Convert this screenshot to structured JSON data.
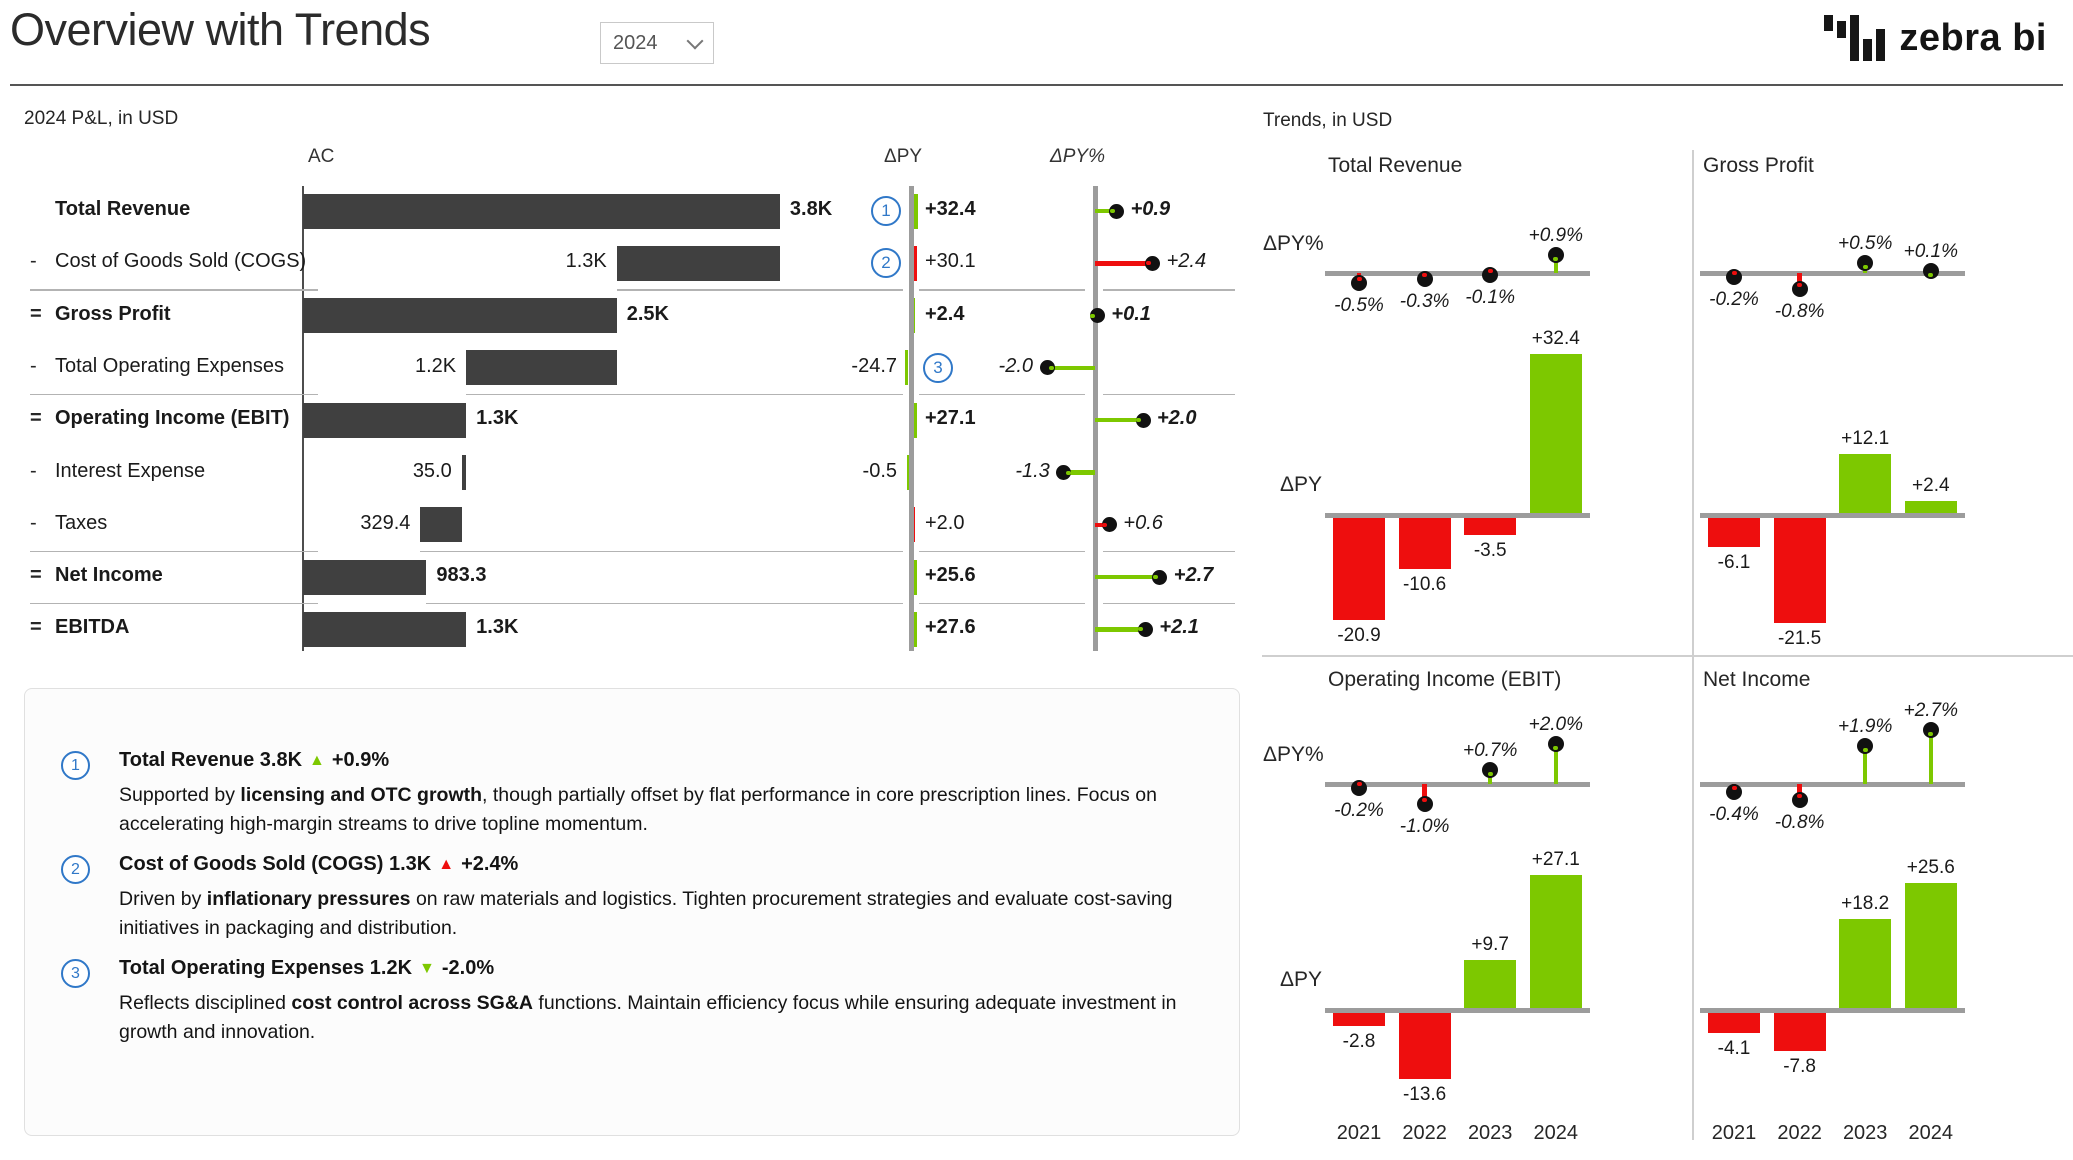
{
  "header": {
    "title": "Overview with Trends",
    "year": "2024",
    "logo_text": "zebra bi"
  },
  "colors": {
    "green": "#7DC800",
    "red": "#EE0E0E",
    "dark_bar": "#404040",
    "axis_gray": "#9C9C9C",
    "axis_dark": "#4d4d4d",
    "marker_blue": "#3078C8",
    "separator": "#b3b3b3",
    "panel_divider": "#cfcfcf",
    "dot_black": "#111111"
  },
  "pl": {
    "section_title": "2024 P&L, in USD",
    "columns": {
      "ac": "AC",
      "dpy": "ΔPY",
      "dpy_pct": "ΔPY%"
    },
    "rows": [
      {
        "prefix": "",
        "label": "Total Revenue",
        "bold": true,
        "ac": {
          "label": "3.8K",
          "from": 0,
          "value": 3800,
          "label_side": "right"
        },
        "dpy": {
          "value": 32.4,
          "label": "+32.4",
          "color": "green"
        },
        "pct": {
          "value": 0.9,
          "label": "+0.9",
          "color": "green"
        },
        "marker": {
          "label": "1",
          "side": "left"
        }
      },
      {
        "prefix": "-",
        "label": "Cost of Goods Sold (COGS)",
        "bold": false,
        "ac": {
          "label": "1.3K",
          "from": 2500,
          "value": 1300,
          "label_side": "left"
        },
        "dpy": {
          "value": 30.1,
          "label": "+30.1",
          "color": "red"
        },
        "pct": {
          "value": 2.4,
          "label": "+2.4",
          "color": "red"
        },
        "marker": {
          "label": "2",
          "side": "left"
        }
      },
      {
        "prefix": "=",
        "label": "Gross Profit",
        "bold": true,
        "separator": true,
        "ac": {
          "label": "2.5K",
          "from": 0,
          "value": 2500,
          "label_side": "right"
        },
        "dpy": {
          "value": 2.4,
          "label": "+2.4",
          "color": "green"
        },
        "pct": {
          "value": 0.1,
          "label": "+0.1",
          "color": "green"
        }
      },
      {
        "prefix": "-",
        "label": "Total Operating Expenses",
        "bold": false,
        "ac": {
          "label": "1.2K",
          "from": 1300,
          "value": 1200,
          "label_side": "left"
        },
        "dpy": {
          "value": -24.7,
          "label": "-24.7",
          "color": "green"
        },
        "pct": {
          "value": -2.0,
          "label": "-2.0",
          "color": "green"
        },
        "marker": {
          "label": "3",
          "side": "right"
        }
      },
      {
        "prefix": "=",
        "label": "Operating Income (EBIT)",
        "bold": true,
        "separator": true,
        "ac": {
          "label": "1.3K",
          "from": 0,
          "value": 1300,
          "label_side": "right"
        },
        "dpy": {
          "value": 27.1,
          "label": "+27.1",
          "color": "green"
        },
        "pct": {
          "value": 2.0,
          "label": "+2.0",
          "color": "green"
        }
      },
      {
        "prefix": "-",
        "label": "Interest Expense",
        "bold": false,
        "ac": {
          "label": "35.0",
          "from": 1265,
          "value": 35,
          "label_side": "left"
        },
        "dpy": {
          "value": -0.5,
          "label": "-0.5",
          "color": "green"
        },
        "pct": {
          "value": -1.3,
          "label": "-1.3",
          "color": "green"
        }
      },
      {
        "prefix": "-",
        "label": "Taxes",
        "bold": false,
        "ac": {
          "label": "329.4",
          "from": 935.6,
          "value": 329.4,
          "label_side": "left"
        },
        "dpy": {
          "value": 2.0,
          "label": "+2.0",
          "color": "red"
        },
        "pct": {
          "value": 0.6,
          "label": "+0.6",
          "color": "red"
        }
      },
      {
        "prefix": "=",
        "label": "Net Income",
        "bold": true,
        "separator": true,
        "ac": {
          "label": "983.3",
          "from": 0,
          "value": 983.3,
          "label_side": "right"
        },
        "dpy": {
          "value": 25.6,
          "label": "+25.6",
          "color": "green"
        },
        "pct": {
          "value": 2.7,
          "label": "+2.7",
          "color": "green"
        }
      },
      {
        "prefix": "=",
        "label": "EBITDA",
        "bold": true,
        "separator": true,
        "ac": {
          "label": "1.3K",
          "from": 0,
          "value": 1300,
          "label_side": "right"
        },
        "dpy": {
          "value": 27.6,
          "label": "+27.6",
          "color": "green"
        },
        "pct": {
          "value": 2.1,
          "label": "+2.1",
          "color": "green"
        }
      }
    ]
  },
  "comments": [
    {
      "n": "1",
      "title": "Total Revenue 3.8K",
      "arrow": "▲",
      "arrow_color": "green",
      "delta": "+0.9%",
      "desc": [
        {
          "text": "Supported by "
        },
        {
          "text": "licensing and OTC growth",
          "bold": true
        },
        {
          "text": ", though partially offset by flat performance in core prescription lines. Focus on accelerating high-margin streams to drive topline momentum."
        }
      ]
    },
    {
      "n": "2",
      "title": "Cost of Goods Sold (COGS) 1.3K",
      "arrow": "▲",
      "arrow_color": "red",
      "delta": "+2.4%",
      "desc": [
        {
          "text": "Driven by "
        },
        {
          "text": "inflationary pressures",
          "bold": true
        },
        {
          "text": " on raw materials and logistics. Tighten procurement strategies and evaluate cost-saving initiatives in packaging and distribution."
        }
      ]
    },
    {
      "n": "3",
      "title": "Total Operating Expenses 1.2K",
      "arrow": "▼",
      "arrow_color": "green",
      "delta": "-2.0%",
      "desc": [
        {
          "text": "Reflects disciplined "
        },
        {
          "text": "cost control across SG&A",
          "bold": true
        },
        {
          "text": " functions. Maintain efficiency focus while ensuring adequate investment in growth and innovation."
        }
      ]
    }
  ],
  "trends": {
    "section_title": "Trends, in USD",
    "axis_labels": {
      "pct": "ΔPY%",
      "bar": "ΔPY"
    },
    "years": [
      "2021",
      "2022",
      "2023",
      "2024"
    ],
    "panels": [
      {
        "title": "Total Revenue",
        "pct": {
          "values": [
            -0.5,
            -0.3,
            -0.1,
            0.9
          ],
          "labels": [
            "-0.5%",
            "-0.3%",
            "-0.1%",
            "+0.9%"
          ]
        },
        "bars": {
          "values": [
            -20.9,
            -10.6,
            -3.5,
            32.4
          ],
          "labels": [
            "-20.9",
            "-10.6",
            "-3.5",
            "+32.4"
          ]
        }
      },
      {
        "title": "Gross Profit",
        "pct": {
          "values": [
            -0.2,
            -0.8,
            0.5,
            0.1
          ],
          "labels": [
            "-0.2%",
            "-0.8%",
            "+0.5%",
            "+0.1%"
          ]
        },
        "bars": {
          "values": [
            -6.1,
            -21.5,
            12.1,
            2.4
          ],
          "labels": [
            "-6.1",
            "-21.5",
            "+12.1",
            "+2.4"
          ]
        }
      },
      {
        "title": "Operating Income (EBIT)",
        "pct": {
          "values": [
            -0.2,
            -1.0,
            0.7,
            2.0
          ],
          "labels": [
            "-0.2%",
            "-1.0%",
            "+0.7%",
            "+2.0%"
          ]
        },
        "bars": {
          "values": [
            -2.8,
            -13.6,
            9.7,
            27.1
          ],
          "labels": [
            "-2.8",
            "-13.6",
            "+9.7",
            "+27.1"
          ]
        }
      },
      {
        "title": "Net Income",
        "pct": {
          "values": [
            -0.4,
            -0.8,
            1.9,
            2.7
          ],
          "labels": [
            "-0.4%",
            "-0.8%",
            "+1.9%",
            "+2.7%"
          ]
        },
        "bars": {
          "values": [
            -4.1,
            -7.8,
            18.2,
            25.6
          ],
          "labels": [
            "-4.1",
            "-7.8",
            "+18.2",
            "+25.6"
          ]
        }
      }
    ]
  },
  "chart_data": [
    {
      "type": "bar",
      "subtype": "waterfall",
      "title": "2024 P&L, in USD",
      "legend_position": "none",
      "grid": false,
      "categories": [
        "Total Revenue",
        "Cost of Goods Sold (COGS)",
        "Gross Profit",
        "Total Operating Expenses",
        "Operating Income (EBIT)",
        "Interest Expense",
        "Taxes",
        "Net Income",
        "EBITDA"
      ],
      "series": [
        {
          "name": "AC",
          "values": [
            3800,
            1300,
            2500,
            1200,
            1300,
            35,
            329.4,
            983.3,
            1300
          ]
        },
        {
          "name": "ΔPY",
          "values": [
            32.4,
            30.1,
            2.4,
            -24.7,
            27.1,
            -0.5,
            2.0,
            25.6,
            27.6
          ]
        },
        {
          "name": "ΔPY%",
          "values": [
            0.9,
            2.4,
            0.1,
            -2.0,
            2.0,
            -1.3,
            0.6,
            2.7,
            2.1
          ]
        }
      ]
    },
    {
      "type": "bar",
      "title": "Total Revenue — Trends, in USD",
      "x": [
        "2021",
        "2022",
        "2023",
        "2024"
      ],
      "series": [
        {
          "name": "ΔPY%",
          "values": [
            -0.5,
            -0.3,
            -0.1,
            0.9
          ]
        },
        {
          "name": "ΔPY",
          "values": [
            -20.9,
            -10.6,
            -3.5,
            32.4
          ]
        }
      ]
    },
    {
      "type": "bar",
      "title": "Gross Profit — Trends, in USD",
      "x": [
        "2021",
        "2022",
        "2023",
        "2024"
      ],
      "series": [
        {
          "name": "ΔPY%",
          "values": [
            -0.2,
            -0.8,
            0.5,
            0.1
          ]
        },
        {
          "name": "ΔPY",
          "values": [
            -6.1,
            -21.5,
            12.1,
            2.4
          ]
        }
      ]
    },
    {
      "type": "bar",
      "title": "Operating Income (EBIT) — Trends, in USD",
      "x": [
        "2021",
        "2022",
        "2023",
        "2024"
      ],
      "series": [
        {
          "name": "ΔPY%",
          "values": [
            -0.2,
            -1.0,
            0.7,
            2.0
          ]
        },
        {
          "name": "ΔPY",
          "values": [
            -2.8,
            -13.6,
            9.7,
            27.1
          ]
        }
      ]
    },
    {
      "type": "bar",
      "title": "Net Income — Trends, in USD",
      "x": [
        "2021",
        "2022",
        "2023",
        "2024"
      ],
      "series": [
        {
          "name": "ΔPY%",
          "values": [
            -0.4,
            -0.8,
            1.9,
            2.7
          ]
        },
        {
          "name": "ΔPY",
          "values": [
            -4.1,
            -7.8,
            18.2,
            25.6
          ]
        }
      ]
    }
  ]
}
